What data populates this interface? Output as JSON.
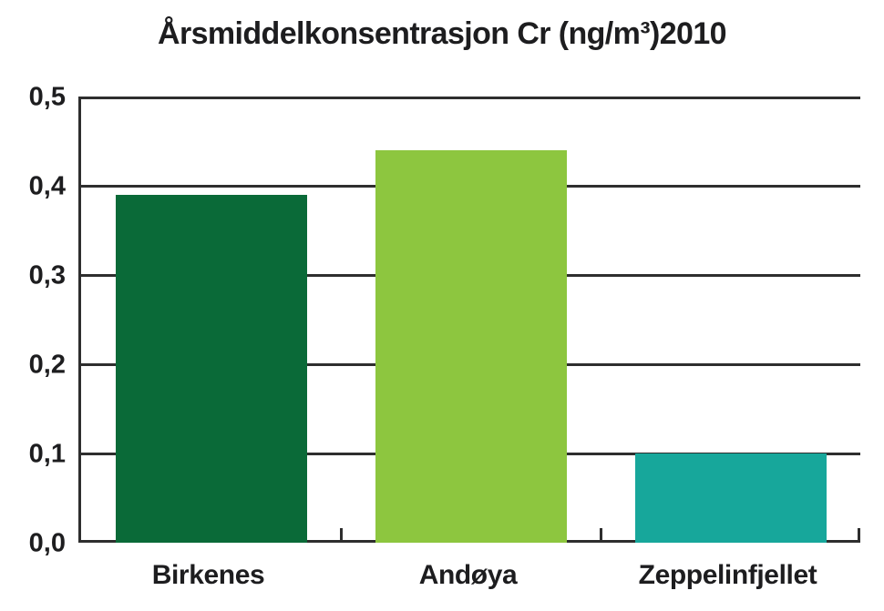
{
  "chart_data": {
    "type": "bar",
    "title": "Årsmiddelkonsentrasjon Cr (ng/m³)2010",
    "categories": [
      "Birkenes",
      "Andøya",
      "Zeppelinfjellet"
    ],
    "values": [
      0.39,
      0.44,
      0.1
    ],
    "bar_colors": [
      "#0a6a38",
      "#8dc63f",
      "#17a79b"
    ],
    "xlabel": "",
    "ylabel": "",
    "ylim": [
      0,
      0.5
    ],
    "ytick_interval": 0.1,
    "ytick_labels": [
      "0,0",
      "0,1",
      "0,2",
      "0,3",
      "0,4",
      "0,5"
    ],
    "grid": "horizontal",
    "legend": "none",
    "axis_color": "#2e2e2e",
    "text_color": "#1d1d1f"
  }
}
